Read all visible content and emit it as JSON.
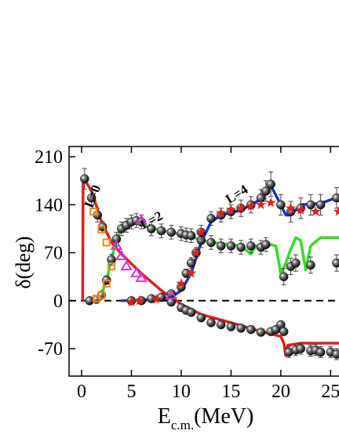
{
  "chart_data": {
    "type": "scatter",
    "y_label": "δ(deg)",
    "x_label": {
      "main": "E",
      "sub": "c.m.",
      "unit": "(MeV)"
    },
    "annotations": [
      "L=0",
      "L=2",
      "L=4"
    ],
    "xlim": [
      -1.26,
      26
    ],
    "ylim": [
      -110,
      225
    ],
    "xticks": [
      0,
      5,
      10,
      15,
      20,
      25
    ],
    "yticks": [
      210,
      140,
      70,
      0,
      -70
    ],
    "hline": 0,
    "series": [
      {
        "style": "sphere",
        "color": "#000000",
        "x": [
          0.3,
          1.0,
          1.6,
          2.1,
          8.0,
          9.0,
          10.0,
          10.5,
          11.0,
          12.0,
          13.0,
          14.0,
          15.0,
          16.0,
          17.0,
          18.0,
          19.0,
          19.5,
          20.0,
          20.3,
          20.8,
          21.5,
          22.0,
          23.0,
          23.5,
          24.0,
          25.0,
          25.6
        ],
        "values": [
          178,
          150,
          125,
          108,
          5,
          -2,
          -10,
          -14,
          -17,
          -25,
          -32,
          -35,
          -38,
          -40,
          -42,
          -46,
          -45,
          -42,
          -35,
          -45,
          -75,
          -72,
          -70,
          -73,
          -72,
          -75,
          -75,
          -78
        ],
        "errors": [
          15,
          12,
          10,
          8,
          4,
          4,
          4,
          4,
          4,
          4,
          4,
          4,
          4,
          4,
          4,
          5,
          5,
          5,
          5,
          5,
          8,
          8,
          8,
          8,
          8,
          8,
          8,
          8
        ]
      },
      {
        "style": "sphere",
        "color": "#000000",
        "x": [
          0.8,
          1.5,
          2.0,
          2.5,
          3.0,
          3.5,
          4.0,
          4.5,
          5.0,
          5.5,
          6.0,
          7.0,
          8.0,
          9.0,
          10.0,
          10.5,
          11.0,
          12.0,
          13.0,
          14.0,
          15.0,
          16.0,
          17.0,
          18.0,
          18.5,
          20.3,
          21.0,
          21.5,
          23.0,
          25.6
        ],
        "values": [
          0,
          2,
          8,
          30,
          60,
          90,
          105,
          110,
          115,
          117,
          115,
          105,
          102,
          100,
          98,
          96,
          95,
          88,
          85,
          80,
          80,
          78,
          80,
          78,
          82,
          35,
          50,
          55,
          52,
          55
        ],
        "errors": [
          3,
          3,
          4,
          6,
          8,
          10,
          10,
          10,
          10,
          10,
          10,
          10,
          10,
          10,
          10,
          10,
          10,
          10,
          10,
          10,
          10,
          10,
          10,
          10,
          10,
          12,
          12,
          12,
          12,
          12
        ]
      },
      {
        "style": "sphere",
        "color": "#000000",
        "x": [
          5.0,
          6.0,
          7.0,
          8.0,
          9.0,
          10.0,
          10.5,
          11.0,
          11.5,
          12.0,
          13.0,
          14.0,
          15.0,
          16.0,
          17.0,
          18.0,
          18.5,
          19.0,
          20.0,
          21.0,
          22.0,
          23.0,
          24.0,
          25.6
        ],
        "values": [
          0,
          0,
          3,
          5,
          10,
          20,
          40,
          55,
          70,
          100,
          120,
          125,
          130,
          135,
          140,
          150,
          160,
          170,
          140,
          130,
          135,
          140,
          140,
          150
        ],
        "errors": [
          3,
          3,
          3,
          3,
          4,
          5,
          6,
          8,
          8,
          10,
          10,
          10,
          10,
          12,
          12,
          12,
          15,
          18,
          15,
          15,
          15,
          15,
          15,
          15
        ]
      },
      {
        "style": "star",
        "color": "#e0201b",
        "x": [
          5.0,
          5.8,
          7.5,
          10.0,
          11.0,
          11.5,
          12.0,
          14.0,
          15.0,
          16.0,
          17.0,
          18.0,
          19.0,
          21.0,
          22.0,
          23.5,
          25.8
        ],
        "values": [
          -2,
          0,
          2,
          25,
          40,
          70,
          100,
          128,
          133,
          135,
          138,
          140,
          143,
          135,
          132,
          130,
          130
        ]
      },
      {
        "style": "square",
        "color": "#f28a1c",
        "x": [
          1.2,
          2.0,
          2.5,
          1.5,
          2.0,
          2.5,
          3.0
        ],
        "values": [
          130,
          104,
          85,
          3,
          8,
          25,
          50
        ]
      },
      {
        "style": "triangle",
        "color": "#d633d6",
        "x": [
          3.5,
          4.0,
          4.5,
          5.5,
          6.0,
          6.0,
          9.0
        ],
        "values": [
          80,
          65,
          50,
          40,
          33,
          117,
          8
        ]
      },
      {
        "style": "line",
        "color": "#e0201b",
        "x": [
          0.1,
          0.15,
          1,
          2,
          3,
          4,
          6,
          8,
          10,
          12,
          15,
          18,
          20,
          20.3,
          20.5,
          20.7,
          22,
          26
        ],
        "values": [
          0,
          180,
          160,
          115,
          85,
          68,
          40,
          15,
          -5,
          -20,
          -32,
          -45,
          -52,
          -62,
          -80,
          -65,
          -62,
          -62
        ]
      },
      {
        "style": "line",
        "color": "#33dd22",
        "x": [
          0.5,
          1.5,
          2,
          2.5,
          3,
          3.5,
          4,
          5,
          6,
          7,
          9,
          11,
          13,
          15,
          16,
          17,
          17.5,
          19,
          19.5,
          20,
          20.5,
          21,
          21.5,
          22,
          22.5,
          23,
          24,
          26
        ],
        "values": [
          0,
          2,
          10,
          30,
          60,
          90,
          105,
          113,
          112,
          106,
          100,
          93,
          85,
          82,
          80,
          68,
          80,
          82,
          80,
          40,
          55,
          75,
          92,
          88,
          45,
          80,
          92,
          92
        ]
      },
      {
        "style": "line",
        "color": "#1a2fd6",
        "x": [
          4,
          8,
          9,
          10,
          11,
          12,
          13,
          14,
          16,
          18,
          19,
          20,
          20.5,
          21,
          22,
          24,
          25.5
        ],
        "values": [
          0,
          2,
          5,
          15,
          40,
          85,
          115,
          125,
          132,
          148,
          168,
          140,
          125,
          125,
          140,
          142,
          150
        ]
      }
    ]
  }
}
